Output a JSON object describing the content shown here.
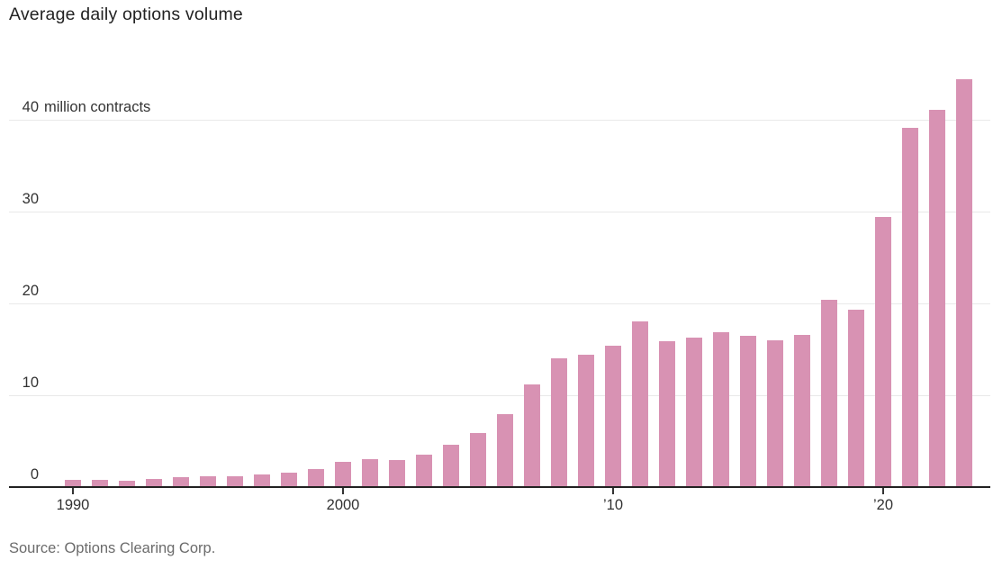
{
  "chart": {
    "title": "Average daily options volume",
    "source": "Source: Options Clearing Corp.",
    "colors": {
      "bar": "#d892b3",
      "grid": "#e9e9e9",
      "axis": "#222222",
      "tick": "#333333",
      "tick_label": "#333333",
      "title": "#222222",
      "source": "#6b6b6b",
      "background": "#ffffff"
    }
  },
  "chart_data": {
    "type": "bar",
    "title": "Average daily options volume",
    "xlabel": "",
    "ylabel": "million contracts",
    "x": [
      1990,
      1991,
      1992,
      1993,
      1994,
      1995,
      1996,
      1997,
      1998,
      1999,
      2000,
      2001,
      2002,
      2003,
      2004,
      2005,
      2006,
      2007,
      2008,
      2009,
      2010,
      2011,
      2012,
      2013,
      2014,
      2015,
      2016,
      2017,
      2018,
      2019,
      2020,
      2021,
      2022,
      2023
    ],
    "values": [
      0.8,
      0.8,
      0.7,
      0.9,
      1.1,
      1.2,
      1.2,
      1.4,
      1.6,
      2.0,
      2.7,
      3.0,
      2.9,
      3.5,
      4.6,
      5.9,
      7.9,
      11.2,
      14.0,
      14.4,
      15.4,
      18.0,
      15.9,
      16.3,
      16.9,
      16.5,
      16.0,
      16.6,
      20.4,
      19.3,
      29.4,
      39.1,
      41.1,
      44.4
    ],
    "ylim": [
      0,
      45
    ],
    "yticks": [
      0,
      10,
      20,
      30,
      40
    ],
    "ytick_unit_label": "million contracts",
    "ytick_unit_on": 40,
    "xticks": [
      {
        "year": 1990,
        "label": "1990"
      },
      {
        "year": 2000,
        "label": "2000"
      },
      {
        "year": 2010,
        "label": "’10"
      },
      {
        "year": 2020,
        "label": "’20"
      }
    ],
    "grid": true,
    "legend": false
  }
}
